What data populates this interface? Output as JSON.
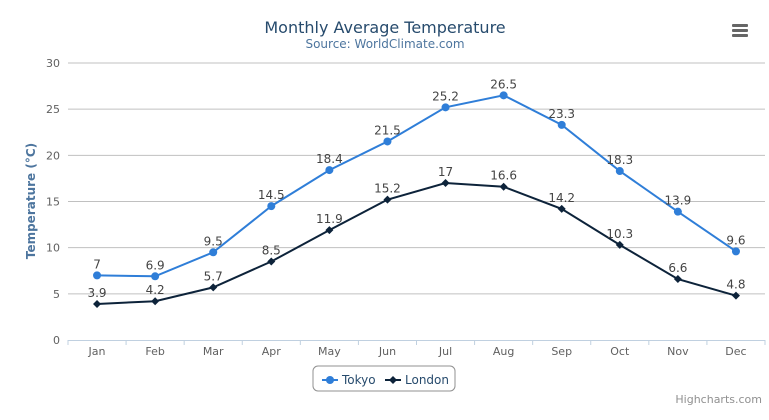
{
  "chart_data": {
    "type": "line",
    "title": "Monthly Average Temperature",
    "subtitle": "Source: WorldClimate.com",
    "xlabel": "",
    "ylabel": "Temperature (°C)",
    "ylim": [
      0,
      30
    ],
    "yticks": [
      0,
      5,
      10,
      15,
      20,
      25,
      30
    ],
    "grid": true,
    "legend_position": "bottom-center",
    "categories": [
      "Jan",
      "Feb",
      "Mar",
      "Apr",
      "May",
      "Jun",
      "Jul",
      "Aug",
      "Sep",
      "Oct",
      "Nov",
      "Dec"
    ],
    "series": [
      {
        "name": "Tokyo",
        "color": "#2f7ed8",
        "marker": "circle",
        "values": [
          7.0,
          6.9,
          9.5,
          14.5,
          18.4,
          21.5,
          25.2,
          26.5,
          23.3,
          18.3,
          13.9,
          9.6
        ]
      },
      {
        "name": "London",
        "color": "#0d233a",
        "marker": "diamond",
        "values": [
          3.9,
          4.2,
          5.7,
          8.5,
          11.9,
          15.2,
          17.0,
          16.6,
          14.2,
          10.3,
          6.6,
          4.8
        ]
      }
    ],
    "data_labels": true
  },
  "credits": "Highcharts.com",
  "menu_icon": "hamburger-menu-icon",
  "colors": {
    "title": "#274b6d",
    "subtitle": "#4d759e",
    "axis_line": "#c0d0e0",
    "grid": "#c0c0c0"
  }
}
